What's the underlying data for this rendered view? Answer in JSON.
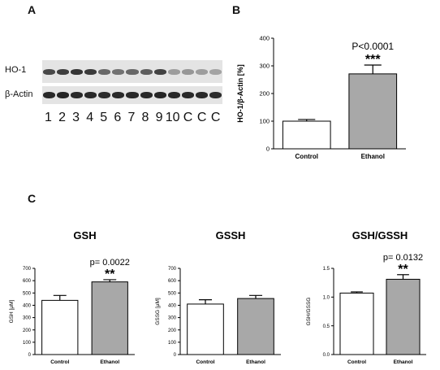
{
  "panels": {
    "A": {
      "letter": "A",
      "rows": [
        "HO-1",
        "β-Actin"
      ],
      "lanes": [
        "1",
        "2",
        "3",
        "4",
        "5",
        "6",
        "7",
        "8",
        "9",
        "10",
        "C",
        "C",
        "C"
      ],
      "ho1_intensity": [
        0.75,
        0.8,
        0.85,
        0.82,
        0.6,
        0.55,
        0.6,
        0.65,
        0.78,
        0.35,
        0.38,
        0.35,
        0.32
      ],
      "actin_intensity": [
        0.9,
        0.92,
        0.9,
        0.9,
        0.88,
        0.9,
        0.9,
        0.9,
        0.92,
        0.9,
        0.9,
        0.9,
        0.88
      ]
    },
    "B": {
      "letter": "B"
    },
    "C": {
      "letter": "C"
    }
  },
  "chart_data": [
    {
      "id": "B",
      "type": "bar",
      "title": "",
      "categories": [
        "Control",
        "Ethanol"
      ],
      "values": [
        100,
        271
      ],
      "errors": [
        6,
        32
      ],
      "colors": [
        "#ffffff",
        "#a8a8a8"
      ],
      "ylabel": "HO-1/β-Actin  [%]",
      "ylim": [
        0,
        400
      ],
      "yticks": [
        0,
        100,
        200,
        300,
        400
      ],
      "annotation": {
        "bar": 1,
        "pvalue": "P<0.0001",
        "stars": "***"
      }
    },
    {
      "id": "GSH",
      "type": "bar",
      "title": "GSH",
      "categories": [
        "Control",
        "Ethanol"
      ],
      "values": [
        440,
        590
      ],
      "errors": [
        40,
        18
      ],
      "colors": [
        "#ffffff",
        "#a8a8a8"
      ],
      "ylabel": "GSH [μM]",
      "ylim": [
        0,
        700
      ],
      "yticks": [
        0,
        100,
        200,
        300,
        400,
        500,
        600,
        700
      ],
      "annotation": {
        "bar": 1,
        "pvalue": "p= 0.0022",
        "stars": "**"
      }
    },
    {
      "id": "GSSH",
      "type": "bar",
      "title": "GSSH",
      "categories": [
        "Control",
        "Ethanol"
      ],
      "values": [
        410,
        455
      ],
      "errors": [
        35,
        25
      ],
      "colors": [
        "#ffffff",
        "#a8a8a8"
      ],
      "ylabel": "GSSG [μM]",
      "ylim": [
        0,
        700
      ],
      "yticks": [
        0,
        100,
        200,
        300,
        400,
        500,
        600,
        700
      ],
      "annotation": null
    },
    {
      "id": "GSH/GSSH",
      "type": "bar",
      "title": "GSH/GSSH",
      "categories": [
        "Control",
        "Ethanol"
      ],
      "values": [
        1.07,
        1.31
      ],
      "errors": [
        0.02,
        0.08
      ],
      "colors": [
        "#ffffff",
        "#a8a8a8"
      ],
      "ylabel": "GSH/GSSG",
      "ylim": [
        0,
        1.5
      ],
      "yticks": [
        0.0,
        0.5,
        1.0,
        1.5
      ],
      "annotation": {
        "bar": 1,
        "pvalue": "p= 0.0132",
        "stars": "**"
      }
    }
  ]
}
